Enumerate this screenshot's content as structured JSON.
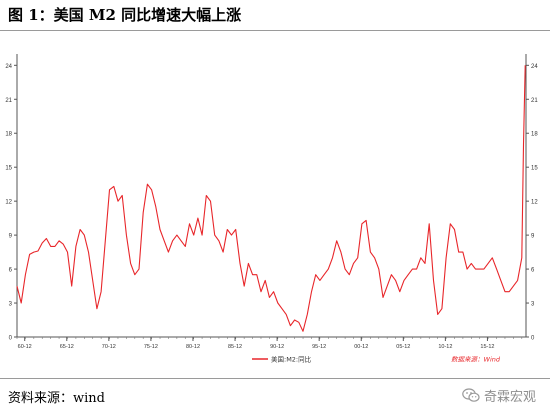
{
  "caption": "图 1：美国 M2 同比增速大幅上涨",
  "source_note": "资料来源：wind",
  "watermark": {
    "text": "奇霖宏观",
    "icon": "wechat-logo-icon"
  },
  "chart_data": {
    "type": "line",
    "title": "",
    "xlabel": "",
    "ylabel": "",
    "y_left_ticks": [
      "0",
      "3",
      "6",
      "9",
      "12",
      "15",
      "18",
      "21",
      "24"
    ],
    "y_right_ticks": [
      "0",
      "3",
      "6",
      "9",
      "12",
      "15",
      "18",
      "21",
      "24"
    ],
    "ylim": [
      0,
      25
    ],
    "x_tick_labels": [
      "60-12",
      "65-12",
      "70-12",
      "75-12",
      "80-12",
      "85-12",
      "90-12",
      "95-12",
      "00-12",
      "05-12",
      "10-12",
      "15-12"
    ],
    "x_tick_years": [
      1960.917,
      1965.917,
      1970.917,
      1975.917,
      1980.917,
      1985.917,
      1990.917,
      1995.917,
      2000.917,
      2005.917,
      2010.917,
      2015.917
    ],
    "xlim": [
      1960.0,
      2020.5
    ],
    "grid": false,
    "legend": {
      "position": "bottom-center"
    },
    "source_label": "数据来源：Wind",
    "series": [
      {
        "name": "美国:M2:同比",
        "color": "#e8262a",
        "x": [
          1960.0,
          1960.5,
          1961.0,
          1961.5,
          1962.0,
          1962.5,
          1963.0,
          1963.5,
          1964.0,
          1964.5,
          1965.0,
          1965.5,
          1966.0,
          1966.5,
          1967.0,
          1967.5,
          1968.0,
          1968.5,
          1969.0,
          1969.5,
          1970.0,
          1970.5,
          1971.0,
          1971.5,
          1972.0,
          1972.5,
          1973.0,
          1973.5,
          1974.0,
          1974.5,
          1975.0,
          1975.5,
          1976.0,
          1976.5,
          1977.0,
          1977.5,
          1978.0,
          1978.5,
          1979.0,
          1979.5,
          1980.0,
          1980.5,
          1981.0,
          1981.5,
          1982.0,
          1982.5,
          1983.0,
          1983.5,
          1984.0,
          1984.5,
          1985.0,
          1985.5,
          1986.0,
          1986.5,
          1987.0,
          1987.5,
          1988.0,
          1988.5,
          1989.0,
          1989.5,
          1990.0,
          1990.5,
          1991.0,
          1991.5,
          1992.0,
          1992.5,
          1993.0,
          1993.5,
          1994.0,
          1994.5,
          1995.0,
          1995.5,
          1996.0,
          1996.5,
          1997.0,
          1997.5,
          1998.0,
          1998.5,
          1999.0,
          1999.5,
          2000.0,
          2000.5,
          2001.0,
          2001.5,
          2002.0,
          2002.5,
          2003.0,
          2003.5,
          2004.0,
          2004.5,
          2005.0,
          2005.5,
          2006.0,
          2006.5,
          2007.0,
          2007.5,
          2008.0,
          2008.5,
          2009.0,
          2009.5,
          2010.0,
          2010.5,
          2011.0,
          2011.5,
          2012.0,
          2012.5,
          2013.0,
          2013.5,
          2014.0,
          2014.5,
          2015.0,
          2015.5,
          2016.0,
          2016.5,
          2017.0,
          2017.5,
          2018.0,
          2018.5,
          2019.0,
          2019.5,
          2020.0,
          2020.2,
          2020.4
        ],
        "values": [
          4.5,
          3.0,
          5.5,
          7.3,
          7.5,
          7.6,
          8.3,
          8.7,
          8.0,
          8.0,
          8.5,
          8.2,
          7.5,
          4.5,
          8.0,
          9.5,
          9.0,
          7.5,
          5.0,
          2.5,
          4.0,
          8.5,
          13.0,
          13.3,
          12.0,
          12.5,
          9.0,
          6.5,
          5.5,
          6.0,
          11.0,
          13.5,
          13.0,
          11.5,
          9.5,
          8.5,
          7.5,
          8.5,
          9.0,
          8.5,
          8.0,
          10.0,
          9.0,
          10.5,
          9.0,
          12.5,
          12.0,
          9.0,
          8.5,
          7.5,
          9.5,
          9.0,
          9.5,
          6.5,
          4.5,
          6.5,
          5.5,
          5.5,
          4.0,
          5.0,
          3.5,
          4.0,
          3.0,
          2.5,
          2.0,
          1.0,
          1.5,
          1.3,
          0.5,
          2.0,
          4.0,
          5.5,
          5.0,
          5.5,
          6.0,
          7.0,
          8.5,
          7.5,
          6.0,
          5.5,
          6.5,
          7.0,
          10.0,
          10.3,
          7.5,
          7.0,
          6.0,
          3.5,
          4.5,
          5.5,
          5.0,
          4.0,
          5.0,
          5.5,
          6.0,
          6.0,
          7.0,
          6.5,
          10.0,
          5.0,
          2.0,
          2.5,
          7.0,
          10.0,
          9.5,
          7.5,
          7.5,
          6.0,
          6.5,
          6.0,
          6.0,
          6.0,
          6.5,
          7.0,
          6.0,
          5.0,
          4.0,
          4.0,
          4.5,
          5.0,
          7.0,
          17.0,
          24.0
        ]
      }
    ]
  }
}
